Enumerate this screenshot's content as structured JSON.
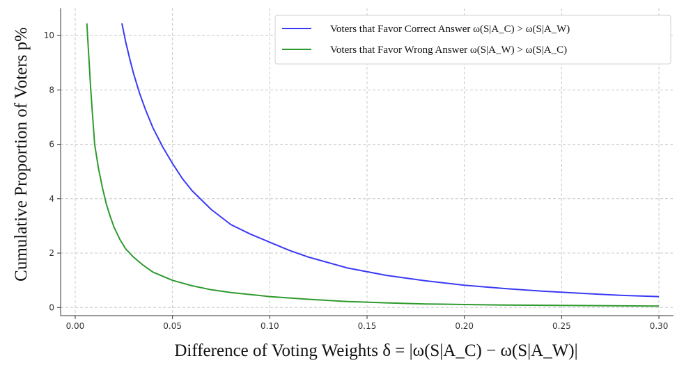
{
  "chart_data": {
    "type": "line",
    "title": "",
    "xlabel": "Difference of Voting Weights δ = |ω(S|A_C) − ω(S|A_W)|",
    "ylabel": "Cumulative Proportion of Voters p%",
    "xlim": [
      -0.0075,
      0.3075
    ],
    "ylim": [
      -0.3,
      11.0
    ],
    "x_ticks": [
      0.0,
      0.05,
      0.1,
      0.15,
      0.2,
      0.25,
      0.3
    ],
    "x_tick_labels": [
      "0.00",
      "0.05",
      "0.10",
      "0.15",
      "0.20",
      "0.25",
      "0.30"
    ],
    "y_ticks": [
      0,
      2,
      4,
      6,
      8,
      10
    ],
    "y_tick_labels": [
      "0",
      "2",
      "4",
      "6",
      "8",
      "10"
    ],
    "grid": true,
    "legend_position": "top-right",
    "series": [
      {
        "name": "Voters that Favor Correct Answer ω(S|A_C) > ω(S|A_W)",
        "color": "#3a3af5",
        "x": [
          0.024,
          0.026,
          0.028,
          0.03,
          0.033,
          0.036,
          0.04,
          0.045,
          0.05,
          0.055,
          0.06,
          0.07,
          0.08,
          0.09,
          0.1,
          0.11,
          0.12,
          0.14,
          0.16,
          0.18,
          0.2,
          0.22,
          0.24,
          0.26,
          0.28,
          0.3
        ],
        "y": [
          10.45,
          9.75,
          9.15,
          8.6,
          7.9,
          7.3,
          6.6,
          5.9,
          5.3,
          4.75,
          4.3,
          3.6,
          3.05,
          2.7,
          2.4,
          2.1,
          1.85,
          1.45,
          1.18,
          0.98,
          0.82,
          0.7,
          0.6,
          0.52,
          0.45,
          0.4
        ]
      },
      {
        "name": "Voters that Favor Wrong Answer ω(S|A_W) > ω(S|A_C)",
        "color": "#2e9a2e",
        "x": [
          0.006,
          0.008,
          0.01,
          0.012,
          0.014,
          0.016,
          0.018,
          0.02,
          0.023,
          0.026,
          0.03,
          0.035,
          0.04,
          0.05,
          0.06,
          0.07,
          0.08,
          0.1,
          0.12,
          0.14,
          0.16,
          0.18,
          0.2,
          0.22,
          0.24,
          0.26,
          0.28,
          0.3
        ],
        "y": [
          10.45,
          8.0,
          6.0,
          5.1,
          4.4,
          3.8,
          3.35,
          2.95,
          2.5,
          2.15,
          1.85,
          1.55,
          1.3,
          1.0,
          0.8,
          0.65,
          0.55,
          0.4,
          0.3,
          0.22,
          0.17,
          0.13,
          0.11,
          0.09,
          0.08,
          0.07,
          0.06,
          0.05
        ]
      }
    ]
  }
}
